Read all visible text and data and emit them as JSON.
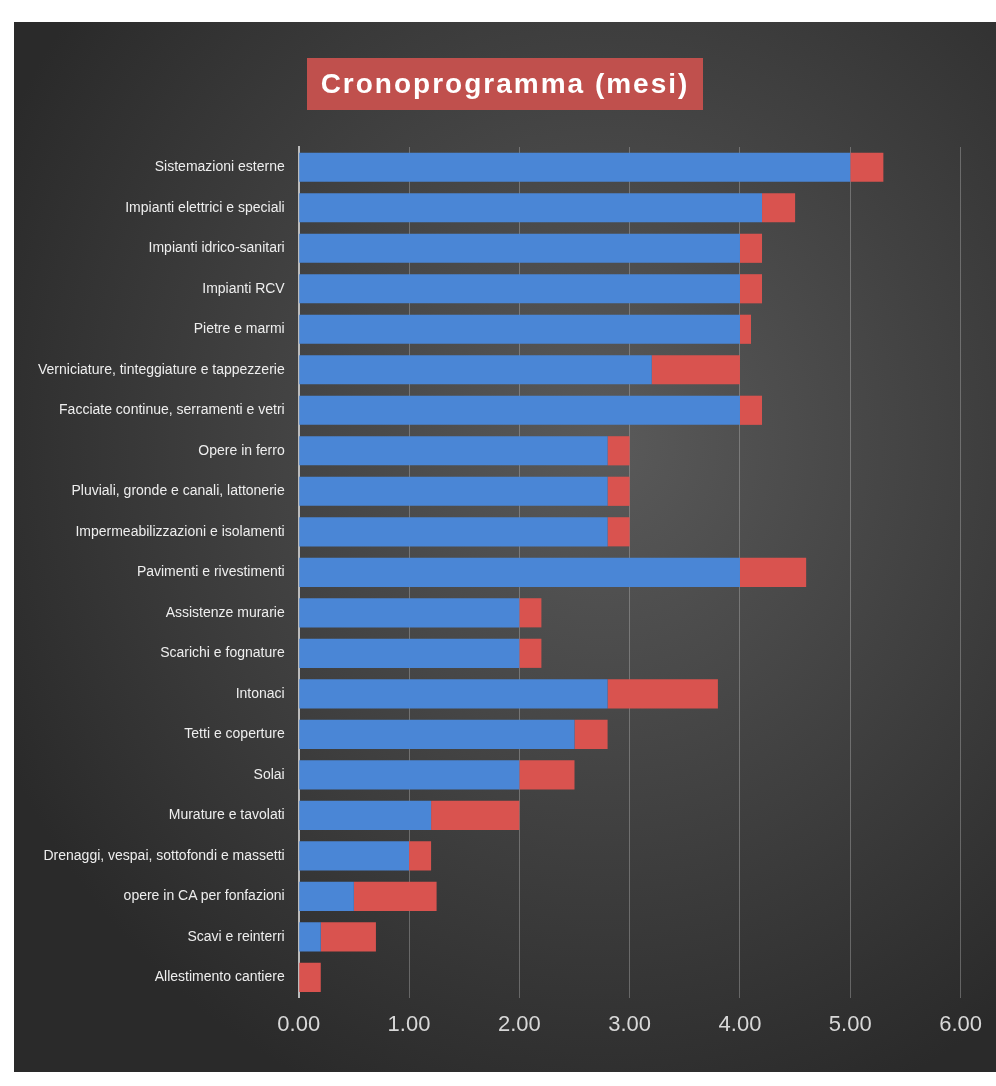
{
  "chart_data": {
    "type": "bar",
    "orientation": "horizontal",
    "stacked": true,
    "title": "Cronoprogramma (mesi)",
    "categories": [
      "Sistemazioni esterne",
      "Impianti elettrici e speciali",
      "Impianti idrico-sanitari",
      "Impianti RCV",
      "Pietre e marmi",
      "Verniciature, tinteggiature e tappezzerie",
      "Facciate continue, serramenti e vetri",
      "Opere in ferro",
      "Pluviali, gronde e canali, lattonerie",
      "Impermeabilizzazioni e isolamenti",
      "Pavimenti e rivestimenti",
      "Assistenze murarie",
      "Scarichi e fognature",
      "Intonaci",
      "Tetti e coperture",
      "Solai",
      "Murature e tavolati",
      "Drenaggi, vespai, sottofondi e massetti",
      "opere in CA per fonfazioni",
      "Scavi e reinterri",
      "Allestimento cantiere"
    ],
    "series": [
      {
        "color": "#4a86d6",
        "values": [
          5.0,
          4.2,
          4.0,
          4.0,
          4.0,
          3.2,
          4.0,
          2.8,
          2.8,
          2.8,
          4.0,
          2.0,
          2.0,
          2.8,
          2.5,
          2.0,
          1.2,
          1.0,
          0.5,
          0.2,
          0
        ]
      },
      {
        "color": "#d9534f",
        "values": [
          0.3,
          0.3,
          0.2,
          0.2,
          0.1,
          0.8,
          0.2,
          0.2,
          0.2,
          0.2,
          0.6,
          0.2,
          0.2,
          1.0,
          0.3,
          0.5,
          0.8,
          0.2,
          0.75,
          0.5,
          0.2
        ]
      }
    ],
    "xlim": [
      0,
      6
    ],
    "xticks": [
      {
        "value": 0,
        "label": "0.00"
      },
      {
        "value": 1,
        "label": "1.00"
      },
      {
        "value": 2,
        "label": "2.00"
      },
      {
        "value": 3,
        "label": "3.00"
      },
      {
        "value": 4,
        "label": "4.00"
      },
      {
        "value": 5,
        "label": "5.00"
      },
      {
        "value": 6,
        "label": "6.00"
      }
    ],
    "grid": "x",
    "legend": false
  }
}
